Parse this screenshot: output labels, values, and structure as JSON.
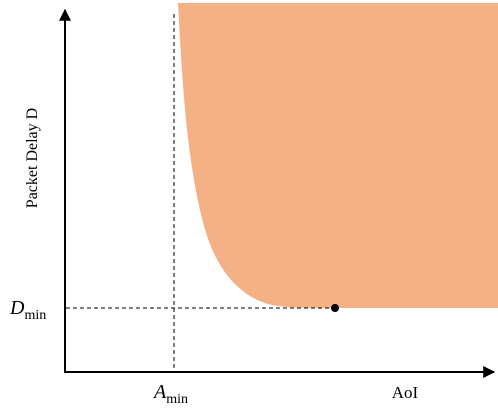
{
  "axes": {
    "y_label": "Packet Delay D",
    "x_label": "AoI"
  },
  "markers": {
    "x_threshold": {
      "symbol": "A",
      "subscript": "min"
    },
    "y_threshold": {
      "symbol": "D",
      "subscript": "min"
    }
  },
  "colors": {
    "region_fill": "#F3B185",
    "axis": "#000000",
    "guide": "#000000",
    "point": "#000000"
  }
}
